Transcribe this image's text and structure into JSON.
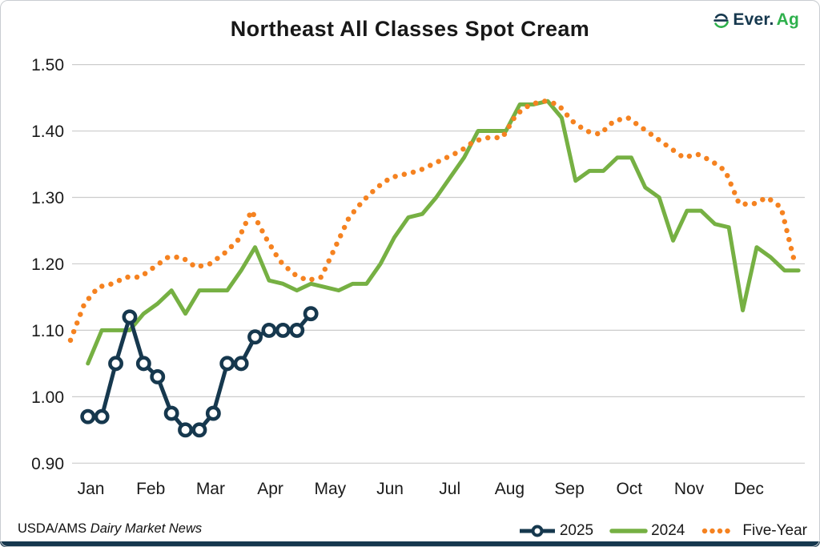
{
  "page": {
    "source_prefix": "USDA/AMS",
    "source_name": "Dairy Market News"
  },
  "logo": {
    "text_primary": "Ever.",
    "text_secondary": "Ag",
    "icon": "ever-ag-globe-e-icon"
  },
  "colors": {
    "navy": "#16384e",
    "green": "#76b043",
    "orange": "#f58220",
    "grid": "#cccccc",
    "text": "#1a1a1a"
  },
  "chart_data": {
    "type": "line",
    "title": "Northeast All Classes Spot Cream",
    "xlabel": "",
    "ylabel": "",
    "grid": "horizontal",
    "legend_position": "bottom-right",
    "x_axis": {
      "months": [
        "Jan",
        "Feb",
        "Mar",
        "Apr",
        "May",
        "Jun",
        "Jul",
        "Aug",
        "Sep",
        "Oct",
        "Nov",
        "Dec"
      ],
      "cadence": "weekly"
    },
    "y_axis": {
      "min": 0.9,
      "max": 1.5,
      "tick_step": 0.1,
      "tick_labels": [
        "1.50",
        "1.40",
        "1.30",
        "1.20",
        "1.10",
        "1.00",
        "0.90"
      ]
    },
    "series": [
      {
        "name": "2025",
        "color": "#16384e",
        "style": "solid-with-markers",
        "start_week": 1.25,
        "values": [
          0.97,
          0.97,
          1.05,
          1.12,
          1.05,
          1.03,
          0.975,
          0.95,
          0.95,
          0.975,
          1.05,
          1.05,
          1.09,
          1.1,
          1.1,
          1.1,
          1.125
        ]
      },
      {
        "name": "2024",
        "color": "#76b043",
        "style": "solid",
        "start_week": 1.25,
        "values": [
          1.05,
          1.1,
          1.1,
          1.1,
          1.125,
          1.14,
          1.16,
          1.125,
          1.16,
          1.16,
          1.16,
          1.19,
          1.225,
          1.175,
          1.17,
          1.16,
          1.17,
          1.165,
          1.16,
          1.17,
          1.17,
          1.2,
          1.24,
          1.27,
          1.275,
          1.3,
          1.33,
          1.36,
          1.4,
          1.4,
          1.4,
          1.44,
          1.44,
          1.445,
          1.42,
          1.325,
          1.34,
          1.34,
          1.36,
          1.36,
          1.315,
          1.3,
          1.235,
          1.28,
          1.28,
          1.26,
          1.255,
          1.13,
          1.225,
          1.21,
          1.19,
          1.19
        ]
      },
      {
        "name": "Five-Year",
        "color": "#f58220",
        "style": "dotted",
        "start_week": 0,
        "values": [
          1.085,
          1.14,
          1.165,
          1.17,
          1.18,
          1.18,
          1.195,
          1.21,
          1.21,
          1.195,
          1.2,
          1.215,
          1.235,
          1.28,
          1.24,
          1.205,
          1.185,
          1.175,
          1.18,
          1.225,
          1.27,
          1.295,
          1.315,
          1.33,
          1.335,
          1.34,
          1.35,
          1.36,
          1.37,
          1.385,
          1.39,
          1.39,
          1.425,
          1.44,
          1.445,
          1.44,
          1.415,
          1.4,
          1.395,
          1.415,
          1.42,
          1.405,
          1.39,
          1.375,
          1.36,
          1.365,
          1.355,
          1.34,
          1.29,
          1.29,
          1.3,
          1.285,
          1.2
        ]
      }
    ]
  }
}
